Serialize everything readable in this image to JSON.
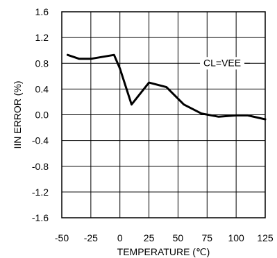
{
  "chart_data": {
    "type": "line",
    "xlabel": "TEMPERATURE (℃)",
    "ylabel": "IIN ERROR (%)",
    "xlim": [
      -50,
      125
    ],
    "ylim": [
      -1.6,
      1.6
    ],
    "xticks": [
      -50,
      -25,
      0,
      25,
      50,
      75,
      100,
      125
    ],
    "xtick_labels": [
      "-50",
      "-25",
      "0",
      "25",
      "50",
      "75",
      "100",
      "125"
    ],
    "yticks": [
      1.6,
      1.2,
      0.8,
      0.4,
      0.0,
      -0.4,
      -0.8,
      -1.2,
      -1.6
    ],
    "ytick_labels": [
      "1.6",
      "1.2",
      "0.8",
      "0.4",
      "0.0",
      "-0.4",
      "-0.8",
      "-1.2",
      "-1.6"
    ],
    "grid": true,
    "annotation": "CL=VEE",
    "series": [
      {
        "x": [
          -45,
          -35,
          -25,
          -5,
          0,
          10,
          25,
          40,
          55,
          70,
          85,
          100,
          110,
          125
        ],
        "y": [
          0.93,
          0.87,
          0.87,
          0.93,
          0.72,
          0.16,
          0.5,
          0.43,
          0.16,
          0.02,
          -0.03,
          -0.01,
          -0.01,
          -0.07
        ]
      }
    ]
  }
}
